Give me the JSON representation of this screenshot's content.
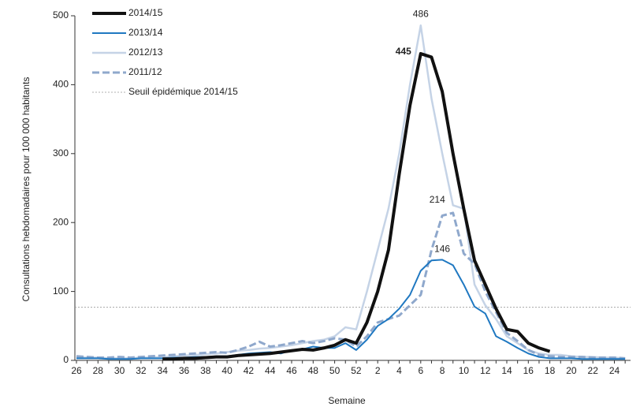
{
  "chart_data": {
    "type": "line",
    "y_label": "Consultations hebdomadaires pour 100 000 habitants",
    "x_label": "Semaine",
    "categories": [
      "26",
      null,
      "28",
      null,
      "30",
      null,
      "32",
      null,
      "34",
      null,
      "36",
      null,
      "38",
      null,
      "40",
      null,
      "42",
      null,
      "44",
      null,
      "46",
      null,
      "48",
      null,
      "50",
      null,
      "52",
      null,
      "2",
      null,
      "4",
      null,
      "6",
      null,
      "8",
      null,
      "10",
      null,
      "12",
      null,
      "14",
      null,
      "16",
      null,
      "18",
      null,
      "20",
      null,
      "22",
      null,
      "24",
      null
    ],
    "ylim": [
      0,
      500
    ],
    "yticks": [
      0,
      100,
      200,
      300,
      400,
      500
    ],
    "legend": "upper left",
    "series": [
      {
        "name": "2014/15",
        "color": "#111111",
        "width": 4,
        "dashed": false,
        "values": [
          null,
          null,
          null,
          null,
          null,
          null,
          null,
          null,
          2,
          2,
          3,
          3,
          4,
          5,
          5,
          7,
          8,
          9,
          10,
          12,
          14,
          16,
          15,
          18,
          22,
          30,
          25,
          55,
          100,
          160,
          270,
          370,
          445,
          440,
          390,
          300,
          220,
          145,
          110,
          75,
          45,
          42,
          25,
          18,
          13,
          null,
          null,
          null,
          null,
          null,
          null,
          null
        ]
      },
      {
        "name": "2013/14",
        "color": "#1f78c1",
        "width": 2,
        "dashed": false,
        "values": [
          3,
          3,
          3,
          2,
          2,
          2,
          3,
          3,
          3,
          4,
          4,
          5,
          5,
          6,
          6,
          8,
          10,
          11,
          12,
          10,
          15,
          16,
          20,
          18,
          18,
          25,
          15,
          30,
          50,
          60,
          75,
          95,
          130,
          145,
          146,
          138,
          110,
          78,
          68,
          35,
          27,
          18,
          10,
          5,
          3,
          3,
          3,
          2,
          2,
          2,
          2,
          2
        ]
      },
      {
        "name": "2012/13",
        "color": "#c5d3e6",
        "width": 2.5,
        "dashed": false,
        "values": [
          5,
          4,
          4,
          3,
          3,
          3,
          4,
          4,
          5,
          6,
          7,
          8,
          9,
          10,
          12,
          14,
          15,
          17,
          18,
          20,
          22,
          25,
          28,
          30,
          35,
          48,
          45,
          100,
          160,
          220,
          300,
          400,
          486,
          380,
          300,
          225,
          220,
          110,
          80,
          60,
          35,
          25,
          15,
          10,
          8,
          8,
          6,
          5,
          5,
          4,
          4,
          3
        ]
      },
      {
        "name": "2011/12",
        "color": "#8fa8cc",
        "width": 3,
        "dashed": true,
        "values": [
          6,
          5,
          4,
          4,
          5,
          4,
          5,
          6,
          7,
          8,
          9,
          10,
          11,
          12,
          11,
          15,
          20,
          27,
          20,
          22,
          25,
          28,
          25,
          28,
          32,
          30,
          20,
          35,
          55,
          60,
          65,
          80,
          95,
          160,
          210,
          214,
          155,
          140,
          100,
          70,
          40,
          28,
          15,
          8,
          6,
          5,
          5,
          5,
          4,
          4,
          4,
          3
        ]
      }
    ],
    "threshold": {
      "name": "Seuil épidémique 2014/15",
      "value": 77,
      "color": "#999999"
    }
  }
}
